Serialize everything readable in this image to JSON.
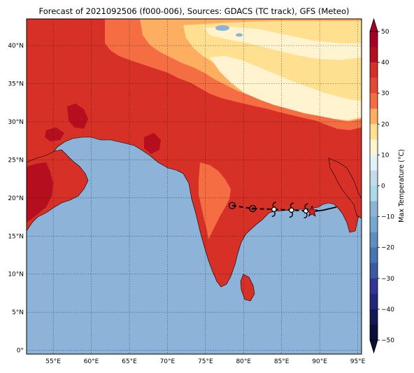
{
  "title": "Forecast of 2021092506 (f000-006), Sources: GDACS (TC track), GFS (Meteo)",
  "map": {
    "lon_range": [
      51.5,
      95.5
    ],
    "lat_range": [
      -0.5,
      43.5
    ],
    "lon_ticks": [
      {
        "value": 55,
        "label": "55°E"
      },
      {
        "value": 60,
        "label": "60°E"
      },
      {
        "value": 65,
        "label": "65°E"
      },
      {
        "value": 70,
        "label": "70°E"
      },
      {
        "value": 75,
        "label": "75°E"
      },
      {
        "value": 80,
        "label": "80°E"
      },
      {
        "value": 85,
        "label": "85°E"
      },
      {
        "value": 90,
        "label": "90°E"
      },
      {
        "value": 95,
        "label": "95°E"
      }
    ],
    "lat_ticks": [
      {
        "value": 0,
        "label": "0°"
      },
      {
        "value": 5,
        "label": "5°N"
      },
      {
        "value": 10,
        "label": "10°N"
      },
      {
        "value": 15,
        "label": "15°N"
      },
      {
        "value": 20,
        "label": "20°N"
      },
      {
        "value": 25,
        "label": "25°N"
      },
      {
        "value": 30,
        "label": "30°N"
      },
      {
        "value": 35,
        "label": "35°N"
      },
      {
        "value": 40,
        "label": "40°N"
      }
    ],
    "grid": true,
    "colors": {
      "ocean": "#8db3d9",
      "t_50": "#a50026",
      "t_40": "#b50f1f",
      "t_30": "#d73027",
      "t_25": "#f46d43",
      "t_20": "#fdae61",
      "t_10": "#fee090",
      "t_0": "#fff4cf"
    }
  },
  "colorbar": {
    "label": "Max Temperature (°C)",
    "ticks": [
      "50",
      "40",
      "30",
      "20",
      "10",
      "0",
      "−10",
      "−20",
      "−30",
      "−40",
      "−50"
    ],
    "colors_top_to_bottom": [
      "#a50026",
      "#b50f1f",
      "#d73027",
      "#e34a33",
      "#f46d43",
      "#fdae61",
      "#fee090",
      "#fff4cf",
      "#e0f3f8",
      "#c2dced",
      "#abd9e9",
      "#8db3d9",
      "#74a9cf",
      "#5a8fc0",
      "#4575b4",
      "#3a5aa3",
      "#313695",
      "#23277a",
      "#141858",
      "#0a0e3a"
    ],
    "extend": "both"
  },
  "track": {
    "points": [
      {
        "lon": 78.5,
        "lat": 19.0,
        "marker": "circle"
      },
      {
        "lon": 81.2,
        "lat": 18.6,
        "marker": "circle-tropical"
      },
      {
        "lon": 84.0,
        "lat": 18.5,
        "marker": "cyclone"
      },
      {
        "lon": 86.3,
        "lat": 18.4,
        "marker": "cyclone"
      },
      {
        "lon": 88.2,
        "lat": 18.3,
        "marker": "cyclone"
      },
      {
        "lon": 89.0,
        "lat": 18.2,
        "marker": "star-current"
      }
    ],
    "forecast_tail": [
      [
        89.0,
        18.2
      ],
      [
        90.5,
        18.4
      ],
      [
        92.2,
        18.8
      ]
    ],
    "colors": {
      "line": "#000000",
      "star": "#e41a1c"
    }
  }
}
